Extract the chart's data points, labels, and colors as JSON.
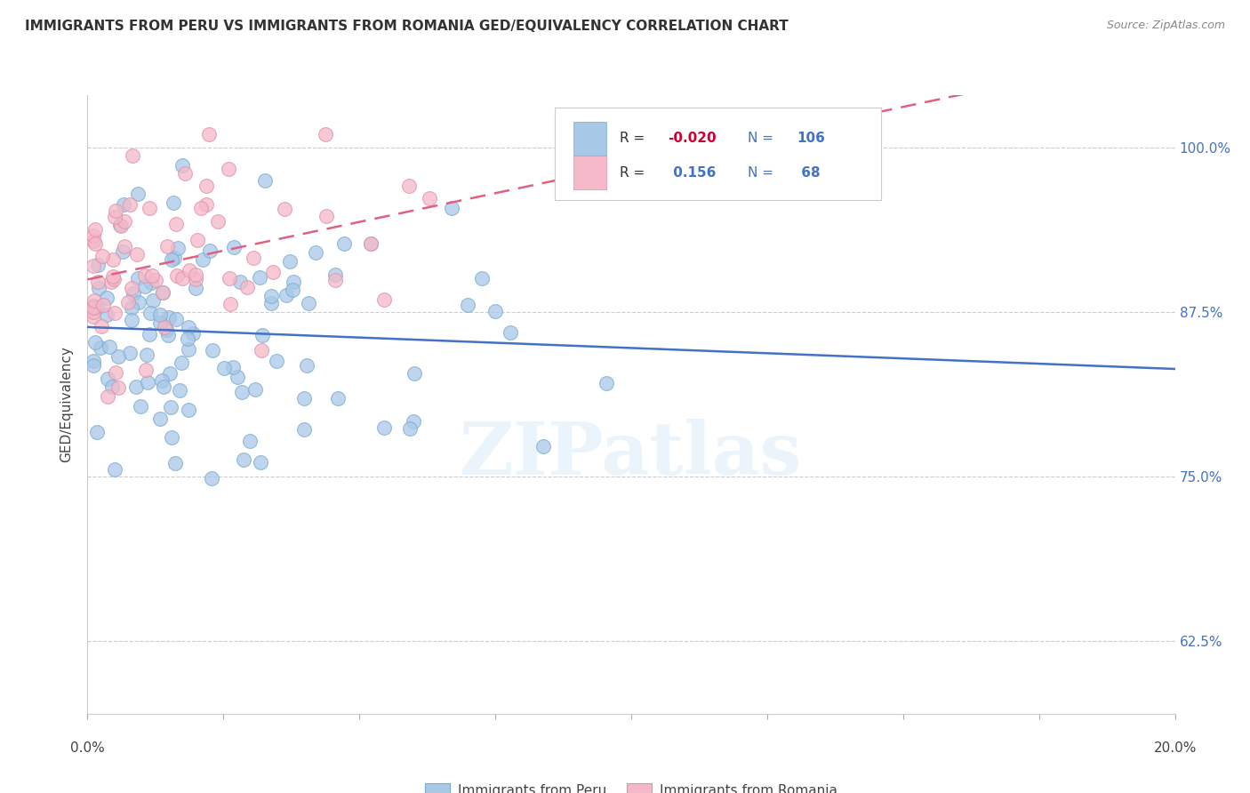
{
  "title": "IMMIGRANTS FROM PERU VS IMMIGRANTS FROM ROMANIA GED/EQUIVALENCY CORRELATION CHART",
  "source": "Source: ZipAtlas.com",
  "ylabel": "GED/Equivalency",
  "yticks": [
    0.625,
    0.75,
    0.875,
    1.0
  ],
  "ytick_labels": [
    "62.5%",
    "75.0%",
    "87.5%",
    "100.0%"
  ],
  "xlim": [
    0.0,
    0.2
  ],
  "ylim": [
    0.57,
    1.04
  ],
  "peru_color": "#a8c8e8",
  "peru_edge": "#7aaad0",
  "romania_color": "#f4b8c8",
  "romania_edge": "#e090a8",
  "peru_line_color": "#4472c4",
  "romania_line_color": "#e06080",
  "right_tick_color": "#4472c4",
  "peru_R": -0.02,
  "peru_N": 106,
  "romania_R": 0.156,
  "romania_N": 68,
  "watermark": "ZIPatlas",
  "legend_R_color": "#4472c4",
  "legend_R_neg_color": "#cc0033",
  "legend_N_color": "#4472c4"
}
